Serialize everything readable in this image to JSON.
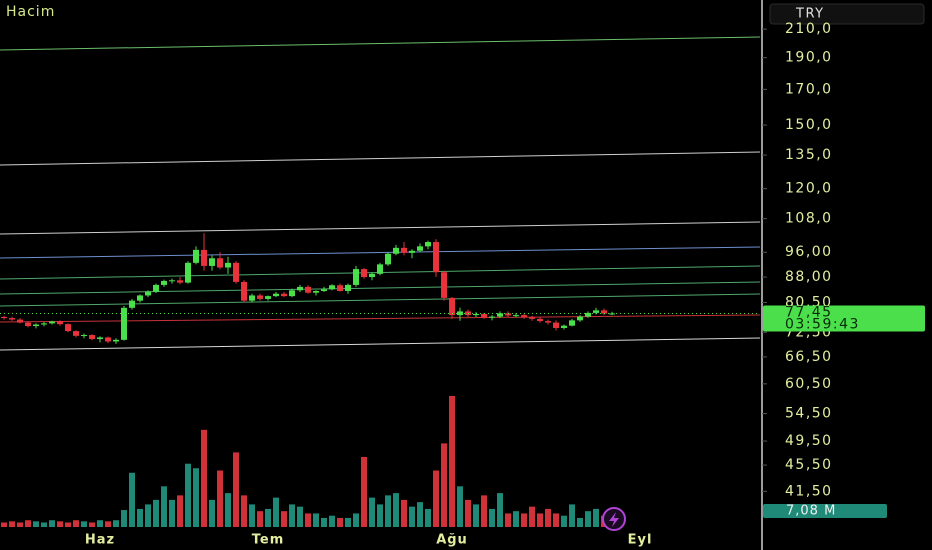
{
  "chart_data": {
    "type": "candlestick",
    "volume_title": "Hacim",
    "currency": "TRY",
    "log_scale": true,
    "ylim": [
      35.6,
      232.6
    ],
    "yticks": [
      {
        "value": 210,
        "label": "210,0"
      },
      {
        "value": 190,
        "label": "190,0"
      },
      {
        "value": 170,
        "label": "170,0"
      },
      {
        "value": 150,
        "label": "150,0"
      },
      {
        "value": 135,
        "label": "135,0"
      },
      {
        "value": 120,
        "label": "120,0"
      },
      {
        "value": 108,
        "label": "108,0"
      },
      {
        "value": 96,
        "label": "96,00"
      },
      {
        "value": 88,
        "label": "88,00"
      },
      {
        "value": 80.5,
        "label": "80,50"
      },
      {
        "value": 72.5,
        "label": "72,50"
      },
      {
        "value": 66.5,
        "label": "66,50"
      },
      {
        "value": 60.5,
        "label": "60,50"
      },
      {
        "value": 54.5,
        "label": "54,50"
      },
      {
        "value": 49.5,
        "label": "49,50"
      },
      {
        "value": 45.5,
        "label": "45,50"
      },
      {
        "value": 41.5,
        "label": "41,50"
      }
    ],
    "xticks": [
      {
        "value": 12,
        "label": "Haz"
      },
      {
        "value": 33,
        "label": "Tem"
      },
      {
        "value": 56,
        "label": "Ağu"
      },
      {
        "value": 79.5,
        "label": "Eyl"
      }
    ],
    "up_color": "#4be04b",
    "down_color": "#e8323c",
    "volume_up_color": "#1f8a78",
    "volume_down_color": "#d0323a",
    "volume_ylim": [
      0,
      88.5
    ],
    "open": [
      76.5,
      76.2,
      75.8,
      75,
      74.1,
      74.5,
      74.8,
      75.3,
      74.6,
      72.8,
      71.6,
      71.8,
      70.8,
      71.2,
      70.2,
      70.6,
      79,
      81,
      82.5,
      83.6,
      85.6,
      86.8,
      87,
      86.3,
      92.5,
      96.8,
      91.5,
      94,
      91,
      92.5,
      86.5,
      81,
      82.5,
      81.5,
      82.3,
      83,
      82.3,
      84,
      85,
      83.3,
      83.8,
      84.3,
      85.5,
      83.8,
      85.6,
      90.5,
      88,
      89,
      92,
      95.5,
      97.5,
      95.8,
      96.5,
      98,
      99.5,
      89.5,
      81.8,
      77,
      78,
      77,
      77.3,
      76.3,
      76.6,
      77.5,
      76.9,
      77,
      76.4,
      76,
      75.4,
      75,
      73.6,
      74.2,
      75.6,
      76.6,
      77.6,
      78.3,
      77.4
    ],
    "high": [
      76.8,
      76.6,
      76.2,
      75.4,
      74.8,
      75.2,
      75.5,
      75.6,
      74.8,
      73,
      72.2,
      72,
      71.5,
      71.4,
      71,
      79.5,
      81.5,
      82.8,
      84,
      86,
      87.2,
      87.5,
      88,
      93,
      98,
      102.6,
      95,
      96,
      94.5,
      93,
      87,
      83,
      83,
      82.5,
      83.5,
      83.5,
      84.5,
      85.6,
      85.5,
      84,
      85,
      85.8,
      86,
      86,
      91.5,
      90.8,
      89.5,
      92.5,
      96,
      98.5,
      99.5,
      97,
      99,
      100,
      100.5,
      90,
      82,
      79,
      78.5,
      77.8,
      77.6,
      77,
      78,
      78,
      77.5,
      77.3,
      76.8,
      76.5,
      75.8,
      75.6,
      74.5,
      76,
      77,
      78,
      79,
      78.8,
      77.9
    ],
    "low": [
      75.8,
      75.5,
      74.8,
      73.8,
      73.5,
      74,
      74.5,
      74.2,
      72.5,
      71.2,
      71,
      70.5,
      70,
      69.8,
      69.6,
      70.4,
      78.5,
      80.5,
      82,
      83.2,
      85,
      86,
      85.8,
      86,
      92,
      90,
      90,
      90.5,
      89,
      86,
      80.5,
      80.5,
      81,
      81,
      82,
      82,
      82,
      83.5,
      83,
      82.5,
      83.5,
      84,
      83.6,
      83,
      85,
      87.5,
      87,
      88.5,
      91.5,
      95,
      95,
      94,
      96,
      97,
      88,
      81,
      76,
      75.5,
      76.5,
      76.5,
      76,
      75.6,
      76.2,
      76.5,
      76.4,
      76,
      75.5,
      75,
      74.5,
      73,
      73.2,
      74,
      75.2,
      76.3,
      77.2,
      77,
      77
    ],
    "close": [
      76.2,
      75.8,
      75,
      74.1,
      74.5,
      74.8,
      75.3,
      74.6,
      72.8,
      71.6,
      71.8,
      70.8,
      71.2,
      70.2,
      70.6,
      79,
      81,
      82.5,
      83.6,
      85.6,
      86.8,
      87,
      86.3,
      92.5,
      96.8,
      91.5,
      94,
      91,
      92.5,
      86.5,
      81,
      82.5,
      81.5,
      82.3,
      83,
      82.3,
      84,
      85,
      83.3,
      83.8,
      84.3,
      85.5,
      83.8,
      85.6,
      90.5,
      88,
      89,
      92,
      95.5,
      97.5,
      95.8,
      96.5,
      98,
      99.5,
      89.5,
      81.8,
      77,
      78,
      77,
      77.3,
      76.3,
      76.6,
      77.5,
      76.9,
      77,
      76.4,
      76,
      75.4,
      75,
      73.6,
      74.2,
      75.6,
      76.6,
      77.6,
      78.3,
      77.4,
      77.45
    ],
    "volume": [
      2,
      2.5,
      2,
      3,
      2.5,
      2,
      3,
      2.5,
      2,
      3,
      2.5,
      2,
      3,
      2.5,
      3,
      7.5,
      24,
      8,
      10,
      12,
      18,
      12,
      14,
      28,
      26,
      43,
      12,
      25,
      15,
      33,
      14,
      10,
      7,
      8,
      13,
      7,
      10,
      9,
      6,
      6,
      4,
      5,
      4,
      4,
      6,
      31,
      13,
      10,
      14,
      15,
      12,
      9,
      11,
      8,
      25,
      37,
      58,
      18,
      12,
      10,
      14,
      8,
      15,
      6,
      7,
      6,
      9,
      6,
      8,
      6,
      5,
      10,
      4,
      7,
      8,
      5,
      7.08
    ],
    "last_price": {
      "value": 77.45,
      "label": "77,45"
    },
    "countdown": "03:59:43",
    "last_volume": {
      "value": 7.08,
      "label": "7,08 M"
    }
  }
}
